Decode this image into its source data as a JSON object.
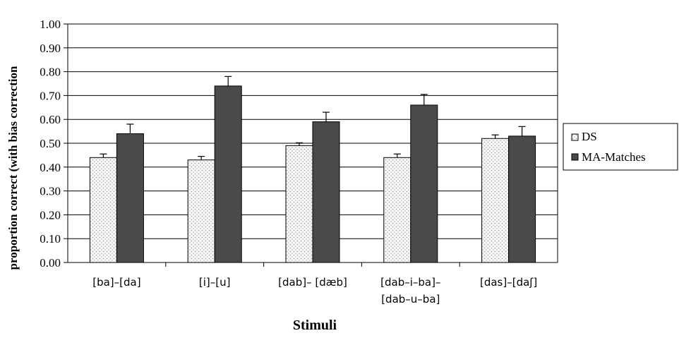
{
  "chart_data": {
    "type": "bar",
    "title": "",
    "xlabel": "Stimuli",
    "ylabel": "proportion correct (with bias correction",
    "ylim": [
      0,
      1
    ],
    "yticks": [
      "0.00",
      "0.10",
      "0.20",
      "0.30",
      "0.40",
      "0.50",
      "0.60",
      "0.70",
      "0.80",
      "0.90",
      "1.00"
    ],
    "grid": true,
    "legend_position": "right",
    "categories": [
      [
        "[ba]–[da]"
      ],
      [
        "[i]–[u]"
      ],
      [
        "[dab]– [dæb]"
      ],
      [
        "[dab–i–ba]–",
        "[dab–u–ba]"
      ],
      [
        "[das]–[daʃ]"
      ]
    ],
    "series": [
      {
        "name": "DS",
        "values": [
          0.44,
          0.43,
          0.49,
          0.44,
          0.52
        ],
        "error": [
          0.015,
          0.015,
          0.012,
          0.015,
          0.015
        ],
        "color": "#f4f4f4",
        "pattern": "dots"
      },
      {
        "name": "MA-Matches",
        "values": [
          0.54,
          0.74,
          0.59,
          0.66,
          0.53
        ],
        "error": [
          0.04,
          0.04,
          0.04,
          0.045,
          0.04
        ],
        "color": "#4a4a4a",
        "pattern": "solid"
      }
    ]
  }
}
